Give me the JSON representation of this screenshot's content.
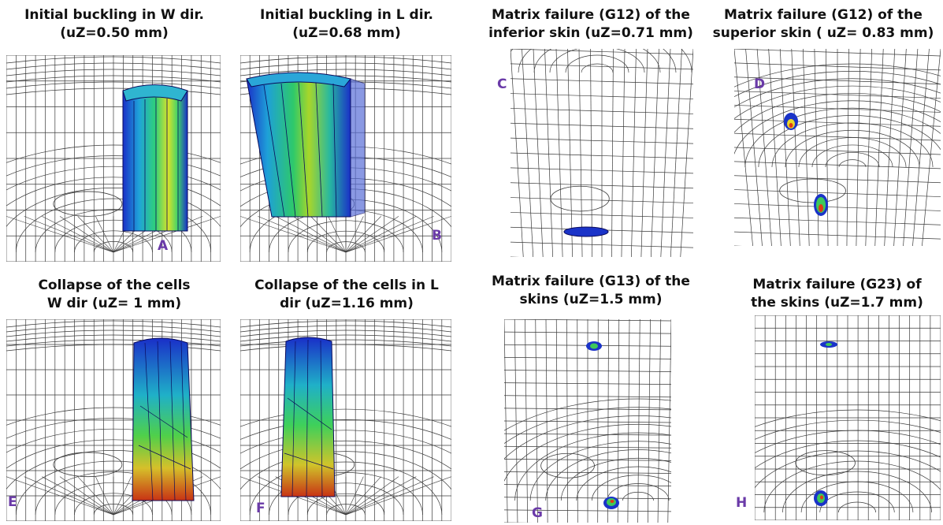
{
  "panels": [
    {
      "id": "A",
      "letter": "A",
      "title_line1": "Initial buckling in W dir.",
      "title_line2": "(uZ=0.50 mm)"
    },
    {
      "id": "B",
      "letter": "B",
      "title_line1": "Initial buckling in L dir.",
      "title_line2": "(uZ=0.68 mm)"
    },
    {
      "id": "C",
      "letter": "C",
      "title_line1": "Matrix failure (G12) of the",
      "title_line2": "inferior skin (uZ=0.71 mm)"
    },
    {
      "id": "D",
      "letter": "D",
      "title_line1": "Matrix failure (G12) of the",
      "title_line2": "superior skin ( uZ= 0.83 mm)"
    },
    {
      "id": "E",
      "letter": "E",
      "title_line1": "Collapse of the cells",
      "title_line2": "W dir (uZ= 1 mm)"
    },
    {
      "id": "F",
      "letter": "F",
      "title_line1": "Collapse of the cells in L",
      "title_line2": "dir (uZ=1.16 mm)"
    },
    {
      "id": "G",
      "letter": "G",
      "title_line1": "Matrix failure (G13) of the",
      "title_line2": "skins (uZ=1.5 mm)"
    },
    {
      "id": "H",
      "letter": "H",
      "title_line1": "Matrix failure (G23) of",
      "title_line2": "the skins (uZ=1.7 mm)"
    }
  ],
  "colors": {
    "mesh": "#3a3a3a",
    "letter": "#6a3aa8",
    "contour_low": "#1a33c8",
    "contour_high": "#e23a12"
  }
}
